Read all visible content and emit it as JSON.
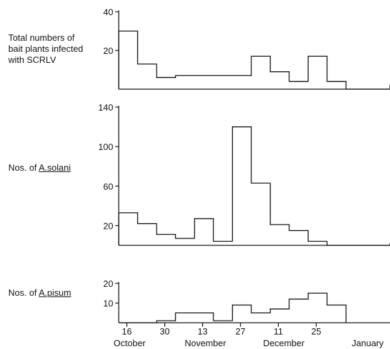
{
  "chart_data": [
    {
      "type": "step",
      "ylabel_lines": [
        "Total numbers of",
        "bait plants infected",
        "with SCRLV"
      ],
      "yticks": [
        20,
        40
      ],
      "ylim": [
        0,
        40
      ],
      "bin_days": 7,
      "x_start_day": 0,
      "values": [
        30,
        13,
        6,
        7,
        7,
        7,
        7,
        17,
        9,
        4,
        17,
        4,
        0,
        0,
        0,
        0,
        2
      ]
    },
    {
      "type": "step",
      "ylabel_prefix": "Nos. of ",
      "ylabel_species": "A.solani",
      "yticks": [
        20,
        60,
        100,
        140
      ],
      "ylim": [
        0,
        140
      ],
      "bin_days": 7,
      "x_start_day": 0,
      "values": [
        33,
        22,
        11,
        7,
        27,
        4,
        120,
        63,
        21,
        15,
        4,
        0,
        0,
        0,
        0,
        0,
        2
      ]
    },
    {
      "type": "step",
      "ylabel_prefix": "Nos. of ",
      "ylabel_species": "A.pisum",
      "yticks": [
        10,
        20
      ],
      "ylim": [
        0,
        20
      ],
      "bin_days": 7,
      "x_start_day": 0,
      "values": [
        0,
        0,
        1,
        5,
        5,
        1,
        9,
        5,
        7,
        12,
        15,
        9
      ]
    }
  ],
  "x_axis": {
    "ticks": [
      {
        "label": "16",
        "day": 3
      },
      {
        "label": "30",
        "day": 17
      },
      {
        "label": "13",
        "day": 31
      },
      {
        "label": "27",
        "day": 45
      },
      {
        "label": "11",
        "day": 59
      },
      {
        "label": "25",
        "day": 73
      }
    ],
    "months": [
      {
        "label": "October",
        "day": 4
      },
      {
        "label": "November",
        "day": 32
      },
      {
        "label": "December",
        "day": 61
      },
      {
        "label": "January",
        "day": 92
      }
    ]
  }
}
